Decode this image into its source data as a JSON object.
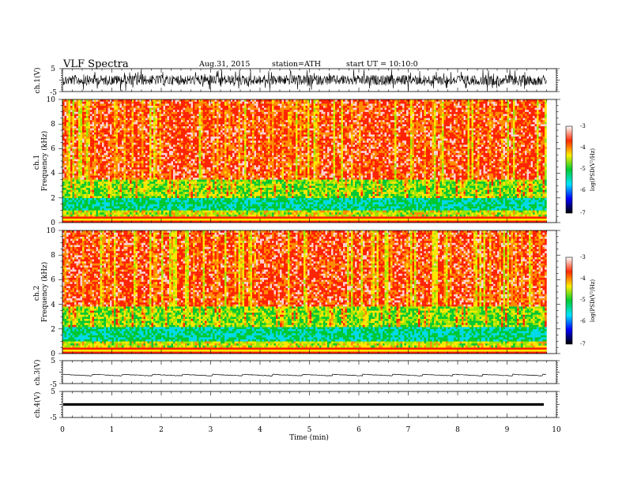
{
  "header": {
    "title": "VLF  Spectra",
    "date": "Aug.31, 2015",
    "station": "station=ATH",
    "start": "start  UT =   10:10:0"
  },
  "chart_data": [
    {
      "type": "line",
      "panel": "ch1-waveform",
      "ylabel": "ch.1(V)",
      "ylim": [
        -5,
        5
      ],
      "yticks": [
        "5",
        "-5"
      ],
      "xlim": [
        0,
        10
      ],
      "x_end": 9.8,
      "trace": "noisy, centred near 0 V, amplitude about ±3 V"
    },
    {
      "type": "heatmap",
      "panel": "ch1-spectrogram",
      "ylabel": "ch.1\nFrequency (kHz)",
      "ylim": [
        0,
        10
      ],
      "yticks": [
        "0",
        "2",
        "4",
        "6",
        "8",
        "10"
      ],
      "xlim": [
        0,
        10
      ],
      "x_end": 9.8,
      "green_band_top_khz": 3.5,
      "colorbar": {
        "label": "log(PSD(V²/Hz)",
        "range": [
          -7,
          -3
        ],
        "ticks": [
          "-3",
          "-4",
          "-5",
          "-6",
          "-7"
        ],
        "colors": [
          "#000000",
          "#0000ff",
          "#00e5ff",
          "#00cc33",
          "#ffee00",
          "#ff2a00",
          "#ffffff"
        ]
      }
    },
    {
      "type": "heatmap",
      "panel": "ch2-spectrogram",
      "ylabel": "ch.2\nFrequency (kHz)",
      "ylim": [
        0,
        10
      ],
      "yticks": [
        "0",
        "2",
        "4",
        "6",
        "8",
        "10"
      ],
      "xlim": [
        0,
        10
      ],
      "x_end": 9.8,
      "green_band_top_khz": 3.9,
      "colorbar": {
        "label": "log(PSD(V²/Hz)",
        "range": [
          -7,
          -3
        ],
        "ticks": [
          "-3",
          "-4",
          "-5",
          "-6",
          "-7"
        ],
        "colors": [
          "#000000",
          "#0000ff",
          "#00e5ff",
          "#00cc33",
          "#ffee00",
          "#ff2a00",
          "#ffffff"
        ]
      }
    },
    {
      "type": "line",
      "panel": "ch3-waveform",
      "ylabel": "ch.3(V)",
      "ylim": [
        -5,
        5
      ],
      "yticks": [
        "5",
        "-5"
      ],
      "xlim": [
        0,
        10
      ],
      "x_end": 9.8,
      "trace": "thin line near -1.3 V with small periodic ramps"
    },
    {
      "type": "line",
      "panel": "ch4-waveform",
      "ylabel": "ch.4(V)",
      "ylim": [
        -5,
        5
      ],
      "yticks": [
        "5",
        "-5"
      ],
      "xlim": [
        0,
        10
      ],
      "x_end": 9.8,
      "trace": "thick flat line near 0 V"
    }
  ],
  "xaxis": {
    "label": "Time  (min)",
    "range": [
      0,
      10
    ],
    "ticks": [
      "0",
      "1",
      "2",
      "3",
      "4",
      "5",
      "6",
      "7",
      "8",
      "9",
      "10"
    ]
  }
}
